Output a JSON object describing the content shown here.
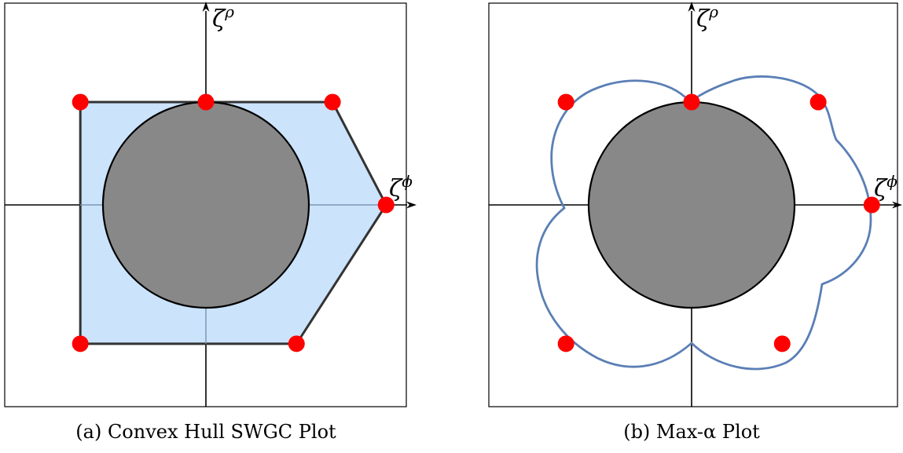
{
  "panels": [
    {
      "caption": "(a) Convex Hull SWGC Plot",
      "x_axis_label": "ζ",
      "x_axis_sup": "ϕ",
      "y_axis_label": "ζ",
      "y_axis_sup": "ρ",
      "points": [
        [
          -1.22,
          1.0
        ],
        [
          0.0,
          1.0
        ],
        [
          1.23,
          1.0
        ],
        [
          1.75,
          0.0
        ],
        [
          0.88,
          -1.35
        ],
        [
          -1.22,
          -1.35
        ]
      ],
      "circle_radius": 1.0,
      "hull_fill": "#c2defa",
      "hull_stroke": "#333333",
      "disk_fill": "#888888",
      "point_color": "#ff0000"
    },
    {
      "caption": "(b) Max-α Plot",
      "x_axis_label": "ζ",
      "x_axis_sup": "ϕ",
      "y_axis_label": "ζ",
      "y_axis_sup": "ρ",
      "points": [
        [
          -1.22,
          1.0
        ],
        [
          0.0,
          1.0
        ],
        [
          1.23,
          1.0
        ],
        [
          1.75,
          0.0
        ],
        [
          0.88,
          -1.35
        ],
        [
          -1.22,
          -1.35
        ]
      ],
      "circle_radius": 1.0,
      "curve_stroke": "#5a7fb5",
      "disk_fill": "#888888",
      "point_color": "#ff0000"
    }
  ]
}
